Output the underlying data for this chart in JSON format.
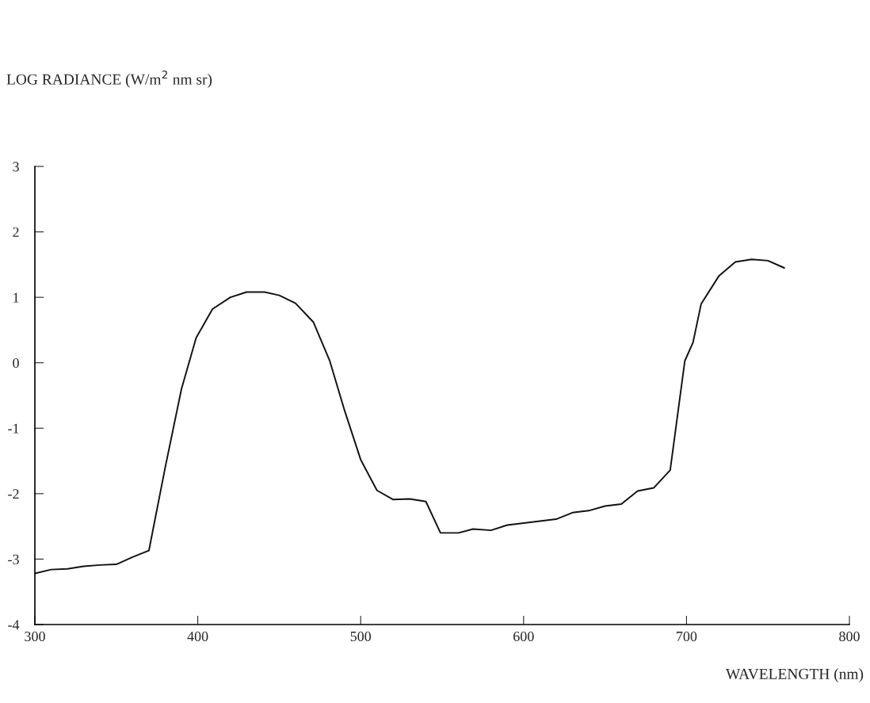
{
  "chart_data": {
    "type": "line",
    "ylabel": "LOG RADIANCE (W/m$^{2}$ nm sr)",
    "xlabel": "WAVELENGTH (nm)",
    "x": [
      300,
      310,
      320,
      330,
      340,
      350,
      360,
      370,
      380,
      390,
      399,
      409,
      420,
      430,
      441,
      450,
      460,
      471,
      481,
      490,
      500,
      510,
      520,
      530,
      540,
      549,
      560,
      569,
      580,
      590,
      600,
      610,
      620,
      630,
      640,
      650,
      660,
      670,
      680,
      690,
      695,
      699,
      704,
      709,
      720,
      730,
      740,
      750,
      760
    ],
    "series": [
      {
        "color": "#111111",
        "values": [
          -3.22,
          -3.16,
          -3.15,
          -3.11,
          -3.09,
          -3.08,
          -2.97,
          -2.87,
          -1.6,
          -0.4,
          0.38,
          0.82,
          1.0,
          1.08,
          1.08,
          1.03,
          0.91,
          0.62,
          0.03,
          -0.72,
          -1.48,
          -1.95,
          -2.09,
          -2.08,
          -2.12,
          -2.6,
          -2.6,
          -2.54,
          -2.56,
          -2.48,
          -2.45,
          -2.42,
          -2.39,
          -2.29,
          -2.26,
          -2.19,
          -2.16,
          -1.96,
          -1.91,
          -1.64,
          -0.71,
          0.03,
          0.31,
          0.9,
          1.33,
          1.54,
          1.58,
          1.56,
          1.45
        ]
      }
    ],
    "xlim": [
      300,
      800
    ],
    "xticks": [
      300,
      400,
      500,
      600,
      700,
      800
    ],
    "ylim": [
      -4,
      3
    ],
    "yticks": [
      -4,
      -3,
      -2,
      -1,
      0,
      1,
      2,
      3
    ],
    "grid": false,
    "legend": false,
    "marker": "none",
    "line_style": "solid"
  }
}
